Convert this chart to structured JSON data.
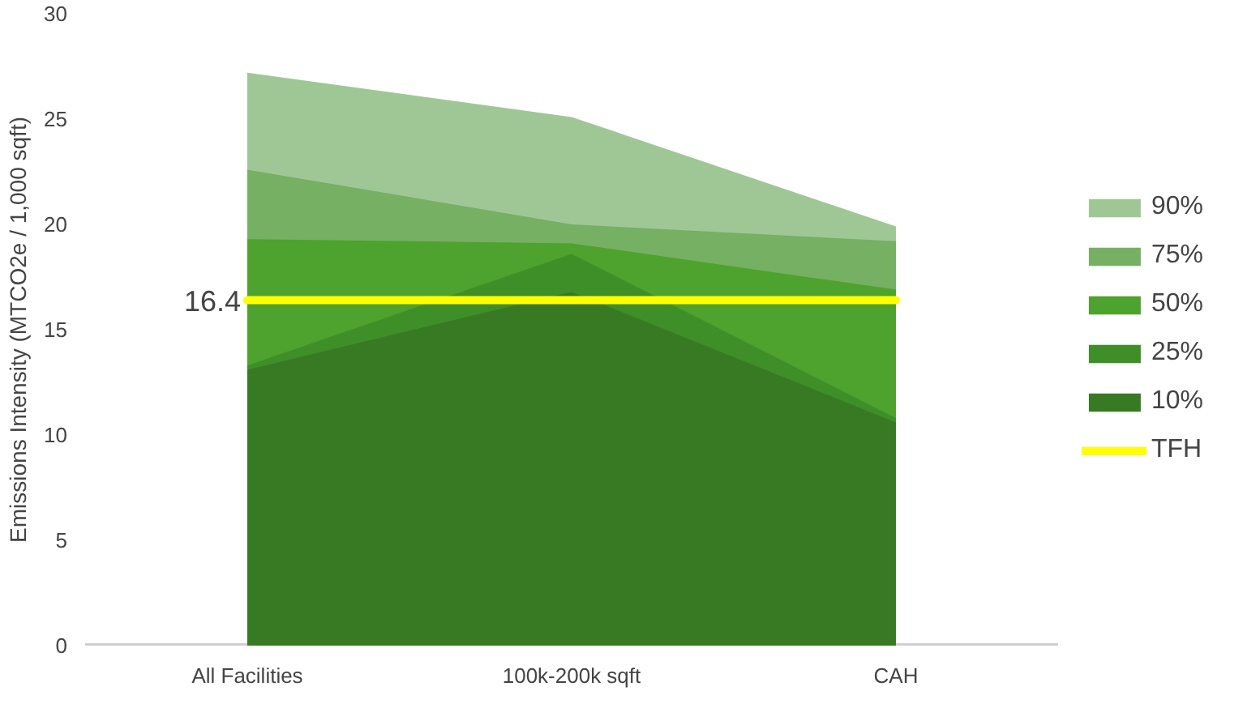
{
  "chart_data": {
    "type": "area",
    "ylabel": "Emissions Intensity (MTCO2e / 1,000 sqft)",
    "categories": [
      "All Facilities",
      "100k-200k sqft",
      "CAH"
    ],
    "series": [
      {
        "name": "90%",
        "color": "#9fc796",
        "values": [
          27.2,
          25.1,
          19.9
        ]
      },
      {
        "name": "75%",
        "color": "#76b063",
        "values": [
          22.6,
          20.0,
          19.2
        ]
      },
      {
        "name": "50%",
        "color": "#4ea22e",
        "values": [
          19.3,
          19.1,
          16.9
        ]
      },
      {
        "name": "25%",
        "color": "#3f8f28",
        "values": [
          13.3,
          18.6,
          10.8
        ]
      },
      {
        "name": "10%",
        "color": "#387a24",
        "values": [
          13.1,
          16.8,
          10.6
        ]
      },
      {
        "name": "TFH",
        "type": "line",
        "color": "#ffff00",
        "values": [
          16.4,
          16.4,
          16.4
        ]
      }
    ],
    "annotations": [
      {
        "text": "16.4",
        "x": "All Facilities",
        "y": 16.4
      }
    ],
    "ylim": [
      0,
      30
    ],
    "yticks": [
      0,
      5,
      10,
      15,
      20,
      25,
      30
    ],
    "grid": false,
    "legend": "right"
  }
}
